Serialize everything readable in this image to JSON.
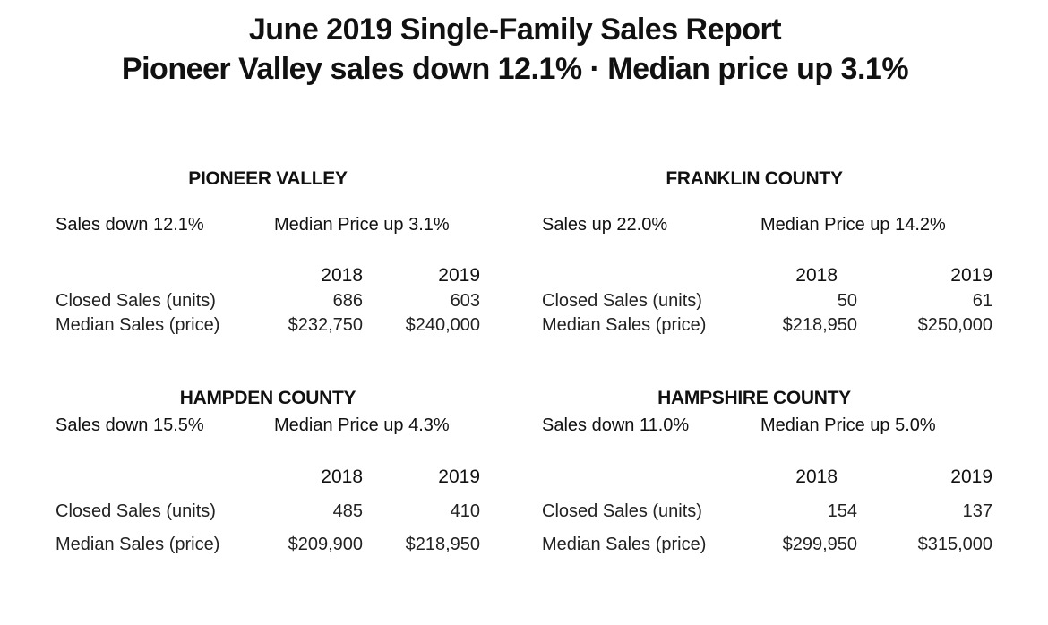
{
  "report": {
    "title": "June 2019 Single-Family Sales Report",
    "subtitle": "Pioneer Valley sales down 12.1% · Median price up 3.1%"
  },
  "regions": [
    {
      "name": "PIONEER VALLEY",
      "sales_change": "Sales down 12.1%",
      "price_change": "Median Price up 3.1%",
      "years": [
        "2018",
        "2019"
      ],
      "closed_label": "Closed Sales (units)",
      "closed": [
        "686",
        "603"
      ],
      "median_label": "Median Sales (price)",
      "median": [
        "$232,750",
        "$240,000"
      ]
    },
    {
      "name": "FRANKLIN COUNTY",
      "sales_change": "Sales up 22.0%",
      "price_change": "Median Price up 14.2%",
      "years": [
        "2018",
        "2019"
      ],
      "closed_label": "Closed Sales (units)",
      "closed": [
        "50",
        "61"
      ],
      "median_label": "Median Sales (price)",
      "median": [
        "$218,950",
        "$250,000"
      ]
    },
    {
      "name": "HAMPDEN COUNTY",
      "sales_change": "Sales down 15.5%",
      "price_change": "Median Price up 4.3%",
      "years": [
        "2018",
        "2019"
      ],
      "closed_label": "Closed Sales (units)",
      "closed": [
        "485",
        "410"
      ],
      "median_label": "Median Sales (price)",
      "median": [
        "$209,900",
        "$218,950"
      ]
    },
    {
      "name": "HAMPSHIRE COUNTY",
      "sales_change": "Sales down 11.0%",
      "price_change": "Median Price up 5.0%",
      "years": [
        "2018",
        "2019"
      ],
      "closed_label": "Closed Sales (units)",
      "closed": [
        "154",
        "137"
      ],
      "median_label": "Median Sales (price)",
      "median": [
        "$299,950",
        "$315,000"
      ]
    }
  ]
}
